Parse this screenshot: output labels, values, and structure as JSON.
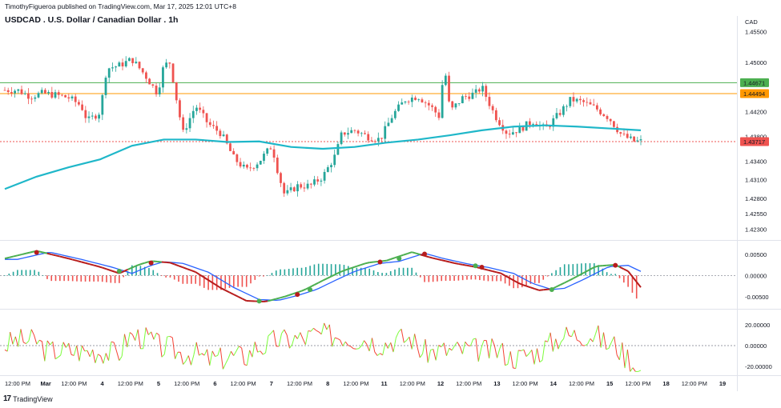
{
  "header": {
    "publish_line": "TimothyFigueroa published on TradingView.com, Mar 17, 2025 12:01 UTC+8",
    "title": "USDCAD . U.S. Dollar / Canadian Dollar . 1h"
  },
  "footer": {
    "logo_mark": "17",
    "logo_text": "TradingView"
  },
  "colors": {
    "up": "#26a69a",
    "down": "#ef5350",
    "ma": "#1fb7c9",
    "green_line": "#4caf50",
    "orange_line": "#ff9800",
    "price_line": "#ef5350",
    "wt1_up": "#4caf50",
    "wt1_down": "#b71c1c",
    "wt2": "#2962ff",
    "osc_up": "#7cfc3a",
    "osc_down": "#f44336"
  },
  "chart_data": [
    {
      "type": "candlestick",
      "title": "USDCAD . U.S. Dollar / Canadian Dollar . 1h",
      "currency_label": "CAD",
      "y_ticks": [
        "1.45500",
        "1.45000",
        "1.44200",
        "1.43800",
        "1.43400",
        "1.43100",
        "1.42800",
        "1.42550",
        "1.42300"
      ],
      "y_tick_values": [
        1.455,
        1.45,
        1.442,
        1.438,
        1.434,
        1.431,
        1.428,
        1.4255,
        1.423
      ],
      "y_range": [
        1.4215,
        1.4575
      ],
      "horizontal_levels": [
        {
          "label": "1.44671",
          "value": 1.44671,
          "color": "#4caf50"
        },
        {
          "label": "1.44494",
          "value": 1.44494,
          "color": "#ff9800"
        },
        {
          "label": "1.43717",
          "value": 1.43717,
          "color": "#ef5350",
          "dotted": true
        }
      ],
      "ma_path": [
        [
          0,
          1.4295
        ],
        [
          0.05,
          1.4315
        ],
        [
          0.1,
          1.433
        ],
        [
          0.15,
          1.4343
        ],
        [
          0.2,
          1.4365
        ],
        [
          0.25,
          1.4375
        ],
        [
          0.3,
          1.4375
        ],
        [
          0.35,
          1.4371
        ],
        [
          0.4,
          1.4372
        ],
        [
          0.45,
          1.4363
        ],
        [
          0.5,
          1.436
        ],
        [
          0.55,
          1.4363
        ],
        [
          0.6,
          1.437
        ],
        [
          0.65,
          1.4375
        ],
        [
          0.7,
          1.4382
        ],
        [
          0.75,
          1.439
        ],
        [
          0.8,
          1.4396
        ],
        [
          0.85,
          1.4398
        ],
        [
          0.9,
          1.4396
        ],
        [
          0.95,
          1.4393
        ],
        [
          1.0,
          1.439
        ]
      ],
      "close_path": [
        [
          0.0,
          1.4455
        ],
        [
          0.02,
          1.4455
        ],
        [
          0.04,
          1.4445
        ],
        [
          0.06,
          1.445
        ],
        [
          0.08,
          1.4447
        ],
        [
          0.1,
          1.4443
        ],
        [
          0.12,
          1.443
        ],
        [
          0.13,
          1.4405
        ],
        [
          0.15,
          1.442
        ],
        [
          0.16,
          1.449
        ],
        [
          0.18,
          1.4495
        ],
        [
          0.2,
          1.4505
        ],
        [
          0.22,
          1.448
        ],
        [
          0.24,
          1.445
        ],
        [
          0.25,
          1.4495
        ],
        [
          0.26,
          1.45
        ],
        [
          0.27,
          1.444
        ],
        [
          0.28,
          1.4385
        ],
        [
          0.3,
          1.443
        ],
        [
          0.32,
          1.44
        ],
        [
          0.34,
          1.4385
        ],
        [
          0.36,
          1.4345
        ],
        [
          0.38,
          1.4325
        ],
        [
          0.4,
          1.434
        ],
        [
          0.42,
          1.4365
        ],
        [
          0.43,
          1.432
        ],
        [
          0.44,
          1.4285
        ],
        [
          0.46,
          1.43
        ],
        [
          0.48,
          1.43
        ],
        [
          0.5,
          1.4315
        ],
        [
          0.52,
          1.435
        ],
        [
          0.53,
          1.4385
        ],
        [
          0.55,
          1.439
        ],
        [
          0.57,
          1.438
        ],
        [
          0.59,
          1.4375
        ],
        [
          0.61,
          1.4415
        ],
        [
          0.63,
          1.444
        ],
        [
          0.65,
          1.4445
        ],
        [
          0.67,
          1.4428
        ],
        [
          0.685,
          1.441
        ],
        [
          0.69,
          1.4505
        ],
        [
          0.7,
          1.442
        ],
        [
          0.72,
          1.4443
        ],
        [
          0.74,
          1.445
        ],
        [
          0.75,
          1.446
        ],
        [
          0.77,
          1.4415
        ],
        [
          0.79,
          1.4385
        ],
        [
          0.81,
          1.4392
        ],
        [
          0.83,
          1.4405
        ],
        [
          0.85,
          1.4392
        ],
        [
          0.87,
          1.4415
        ],
        [
          0.89,
          1.444
        ],
        [
          0.91,
          1.4435
        ],
        [
          0.93,
          1.4425
        ],
        [
          0.95,
          1.441
        ],
        [
          0.97,
          1.4382
        ],
        [
          0.99,
          1.4372
        ],
        [
          1.0,
          1.4372
        ]
      ]
    },
    {
      "type": "line",
      "name_panel": "wave-oscillator",
      "y_ticks": [
        "0.00500",
        "0.00000",
        "-0.00500"
      ],
      "y_tick_values": [
        0.005,
        0.0,
        -0.005
      ],
      "y_range": [
        -0.0075,
        0.0078
      ]
    },
    {
      "type": "line",
      "name_panel": "momentum-oscillator",
      "y_ticks": [
        "20.00000",
        "0.00000",
        "-20.00000"
      ],
      "y_tick_values": [
        20,
        0,
        -20
      ],
      "y_range": [
        -27,
        34
      ]
    }
  ],
  "x_axis": {
    "labels": [
      "12:00 PM",
      "Mar",
      "12:00 PM",
      "4",
      "12:00 PM",
      "5",
      "12:00 PM",
      "6",
      "12:00 PM",
      "7",
      "12:00 PM",
      "8",
      "12:00 PM",
      "11",
      "12:00 PM",
      "12",
      "12:00 PM",
      "13",
      "12:00 PM",
      "14",
      "12:00 PM",
      "15",
      "12:00 PM",
      "18",
      "12:00 PM",
      "19"
    ]
  }
}
